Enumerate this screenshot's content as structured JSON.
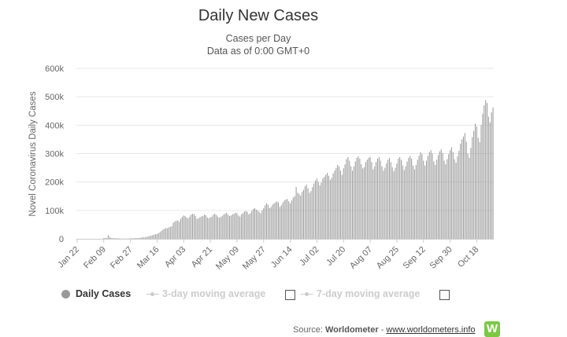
{
  "title": "Daily New Cases",
  "subtitle": "Cases per Day",
  "subtitle2": "Data as of 0:00 GMT+0",
  "legend": {
    "items": [
      {
        "label": "Daily Cases",
        "active": true
      },
      {
        "label": "3-day moving average",
        "active": false
      },
      {
        "label": "7-day moving average",
        "active": false
      }
    ]
  },
  "source": {
    "prefix": "Source:",
    "name": "Worldometer",
    "separator": "-",
    "link": "www.worldometers.info",
    "logo_letter": "W"
  },
  "colors": {
    "bar": "#999999",
    "grid": "#e6e6e6",
    "legend_inactive": "#cccccc"
  },
  "chart_data": {
    "type": "bar",
    "ylabel": "Novel Coronavirus Daily Cases",
    "xlabel": "",
    "ylim": [
      0,
      600000
    ],
    "yticks": [
      0,
      100000,
      200000,
      300000,
      400000,
      500000,
      600000
    ],
    "ytick_labels": [
      "0",
      "100k",
      "200k",
      "300k",
      "400k",
      "500k",
      "600k"
    ],
    "xtick_labels": [
      "Jan 22",
      "Feb 09",
      "Feb 27",
      "Mar 16",
      "Apr 03",
      "Apr 21",
      "May 09",
      "May 27",
      "Jun 14",
      "Jul 02",
      "Jul 20",
      "Aug 07",
      "Aug 25",
      "Sep 12",
      "Sep 30",
      "Oct 18"
    ],
    "series": [
      {
        "name": "Daily Cases",
        "segments": [
          {
            "from": "Jan 22",
            "to": "Feb 09",
            "values": [
              0,
              0,
              0,
              0,
              0,
              0,
              0,
              0,
              0,
              0,
              0,
              0,
              0,
              0,
              0,
              0,
              0,
              0,
              0
            ]
          },
          {
            "from": "Feb 09",
            "to": "Feb 27",
            "values": [
              3000,
              3000,
              2500,
              12000,
              6000,
              3000,
              2500,
              2000,
              2000,
              2000,
              1500,
              1000,
              1000,
              1000,
              1000,
              1000,
              1000,
              1000,
              1500
            ]
          },
          {
            "from": "Feb 27",
            "to": "Mar 16",
            "values": [
              1500,
              2000,
              2000,
              2500,
              2500,
              3000,
              3000,
              4000,
              5000,
              5000,
              6000,
              7000,
              8000,
              10000,
              11000,
              13000,
              15000,
              16000,
              17000
            ]
          },
          {
            "from": "Mar 16",
            "to": "Apr 03",
            "values": [
              17000,
              20000,
              24000,
              28000,
              33000,
              35000,
              38000,
              37000,
              40000,
              42000,
              45000,
              57000,
              61000,
              63000,
              65000,
              60000,
              70000,
              77000,
              82000
            ]
          },
          {
            "from": "Apr 03",
            "to": "Apr 21",
            "values": [
              82000,
              80000,
              75000,
              72000,
              78000,
              85000,
              88000,
              86000,
              80000,
              70000,
              72000,
              76000,
              79000,
              80000,
              85000,
              83000,
              75000,
              72000,
              76000
            ]
          },
          {
            "from": "Apr 21",
            "to": "May 09",
            "values": [
              76000,
              78000,
              85000,
              88000,
              84000,
              78000,
              74000,
              77000,
              80000,
              86000,
              88000,
              92000,
              85000,
              80000,
              82000,
              86000,
              88000,
              92000,
              90000
            ]
          },
          {
            "from": "May 09",
            "to": "May 27",
            "values": [
              90000,
              82000,
              78000,
              86000,
              90000,
              96000,
              98000,
              95000,
              86000,
              90000,
              98000,
              105000,
              108000,
              103000,
              100000,
              95000,
              90000,
              100000,
              108000
            ]
          },
          {
            "from": "May 27",
            "to": "Jun 14",
            "values": [
              108000,
              118000,
              125000,
              120000,
              108000,
              112000,
              120000,
              125000,
              128000,
              132000,
              128000,
              112000,
              118000,
              128000,
              135000,
              138000,
              140000,
              132000,
              125000
            ]
          },
          {
            "from": "Jun 14",
            "to": "Jul 02",
            "values": [
              125000,
              135000,
              145000,
              150000,
              182000,
              162000,
              158000,
              152000,
              165000,
              172000,
              185000,
              190000,
              178000,
              162000,
              168000,
              182000,
              195000,
              205000,
              212000
            ]
          },
          {
            "from": "Jul 02",
            "to": "Jul 20",
            "values": [
              212000,
              200000,
              188000,
              198000,
              212000,
              218000,
              225000,
              232000,
              222000,
              208000,
              215000,
              230000,
              240000,
              250000,
              260000,
              255000,
              240000,
              225000,
              248000
            ]
          },
          {
            "from": "Jul 20",
            "to": "Aug 07",
            "values": [
              248000,
              262000,
              280000,
              288000,
              275000,
              255000,
              240000,
              255000,
              272000,
              285000,
              290000,
              282000,
              262000,
              248000,
              252000,
              270000,
              278000,
              285000,
              288000
            ]
          },
          {
            "from": "Aug 07",
            "to": "Aug 25",
            "values": [
              288000,
              270000,
              245000,
              255000,
              270000,
              282000,
              288000,
              275000,
              255000,
              240000,
              250000,
              265000,
              278000,
              285000,
              270000,
              252000,
              238000,
              250000,
              265000
            ]
          },
          {
            "from": "Aug 25",
            "to": "Sep 12",
            "values": [
              265000,
              282000,
              288000,
              278000,
              258000,
              242000,
              255000,
              272000,
              285000,
              292000,
              282000,
              258000,
              245000,
              260000,
              278000,
              292000,
              305000,
              298000,
              275000
            ]
          },
          {
            "from": "Sep 12",
            "to": "Sep 30",
            "values": [
              275000,
              258000,
              275000,
              292000,
              305000,
              312000,
              300000,
              272000,
              260000,
              278000,
              295000,
              308000,
              315000,
              302000,
              275000,
              262000,
              280000,
              298000,
              312000
            ]
          },
          {
            "from": "Sep 30",
            "to": "Oct 18",
            "values": [
              312000,
              322000,
              305000,
              280000,
              268000,
              290000,
              310000,
              335000,
              350000,
              360000,
              372000,
              342000,
              300000,
              285000,
              320000,
              358000,
              380000,
              405000,
              395000
            ]
          },
          {
            "from": "Oct 18",
            "to": "end",
            "values": [
              395000,
              355000,
              340000,
              400000,
              440000,
              470000,
              488000,
              478000,
              430000,
              410000,
              445000,
              462000
            ]
          }
        ]
      }
    ]
  }
}
